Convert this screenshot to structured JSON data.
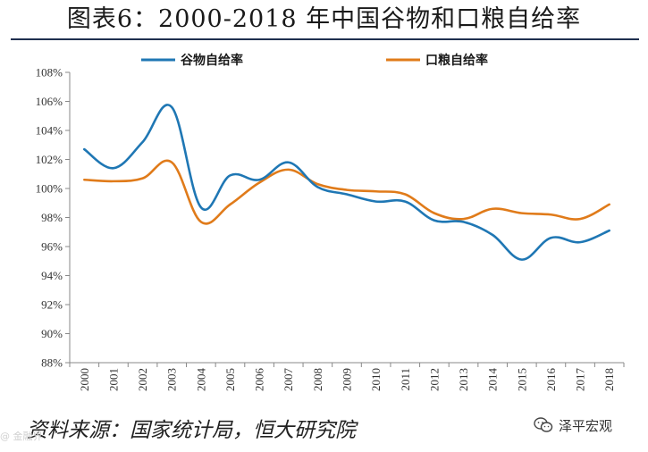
{
  "title": "图表6：2000-2018 年中国谷物和口粮自给率",
  "source": "资料来源：国家统计局，恒大研究院",
  "watermark": "@ 金融界",
  "brand": {
    "name": "泽平宏观",
    "icon": "wechat-icon"
  },
  "chart_data": {
    "type": "line",
    "title": "图表6：2000-2018 年中国谷物和口粮自给率",
    "xlabel": "",
    "ylabel": "",
    "x": [
      "2000",
      "2001",
      "2002",
      "2003",
      "2004",
      "2005",
      "2006",
      "2007",
      "2008",
      "2009",
      "2010",
      "2011",
      "2012",
      "2013",
      "2014",
      "2015",
      "2016",
      "2017",
      "2018"
    ],
    "ylim": [
      88,
      108
    ],
    "yticks": [
      88,
      90,
      92,
      94,
      96,
      98,
      100,
      102,
      104,
      106,
      108
    ],
    "ytick_labels": [
      "88%",
      "90%",
      "92%",
      "94%",
      "96%",
      "98%",
      "100%",
      "102%",
      "104%",
      "106%",
      "108%"
    ],
    "grid": false,
    "legend_position": "top",
    "series": [
      {
        "name": "谷物自给率",
        "color": "#1f77b4",
        "values": [
          102.7,
          101.4,
          103.2,
          105.6,
          98.7,
          100.9,
          100.6,
          101.8,
          100.1,
          99.6,
          99.1,
          99.1,
          97.8,
          97.7,
          96.8,
          95.1,
          96.6,
          96.3,
          97.1
        ]
      },
      {
        "name": "口粮自给率",
        "color": "#e07b1a",
        "values": [
          100.6,
          100.5,
          100.7,
          101.8,
          97.7,
          98.9,
          100.4,
          101.3,
          100.3,
          99.9,
          99.8,
          99.6,
          98.3,
          97.9,
          98.6,
          98.3,
          98.2,
          97.9,
          98.9
        ]
      }
    ]
  }
}
